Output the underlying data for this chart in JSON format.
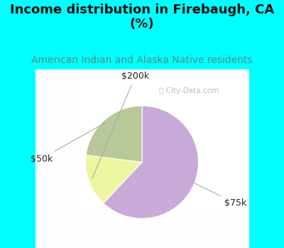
{
  "title": "Income distribution in Firebaugh, CA\n(%)",
  "subtitle": "American Indian and Alaska Native residents",
  "title_color": "#111111",
  "subtitle_color": "#5a8a8a",
  "title_fontsize": 13,
  "subtitle_fontsize": 10,
  "slices": [
    {
      "label": "$75k",
      "value": 62,
      "color": "#c8aad8"
    },
    {
      "label": "$200k",
      "value": 15,
      "color": "#eef5a0"
    },
    {
      "label": "$50k",
      "value": 23,
      "color": "#b8c898"
    }
  ],
  "label_fontsize": 9,
  "bg_top_color": "#00ffff",
  "watermark": "ⓘ City-Data.com",
  "startangle": 90
}
